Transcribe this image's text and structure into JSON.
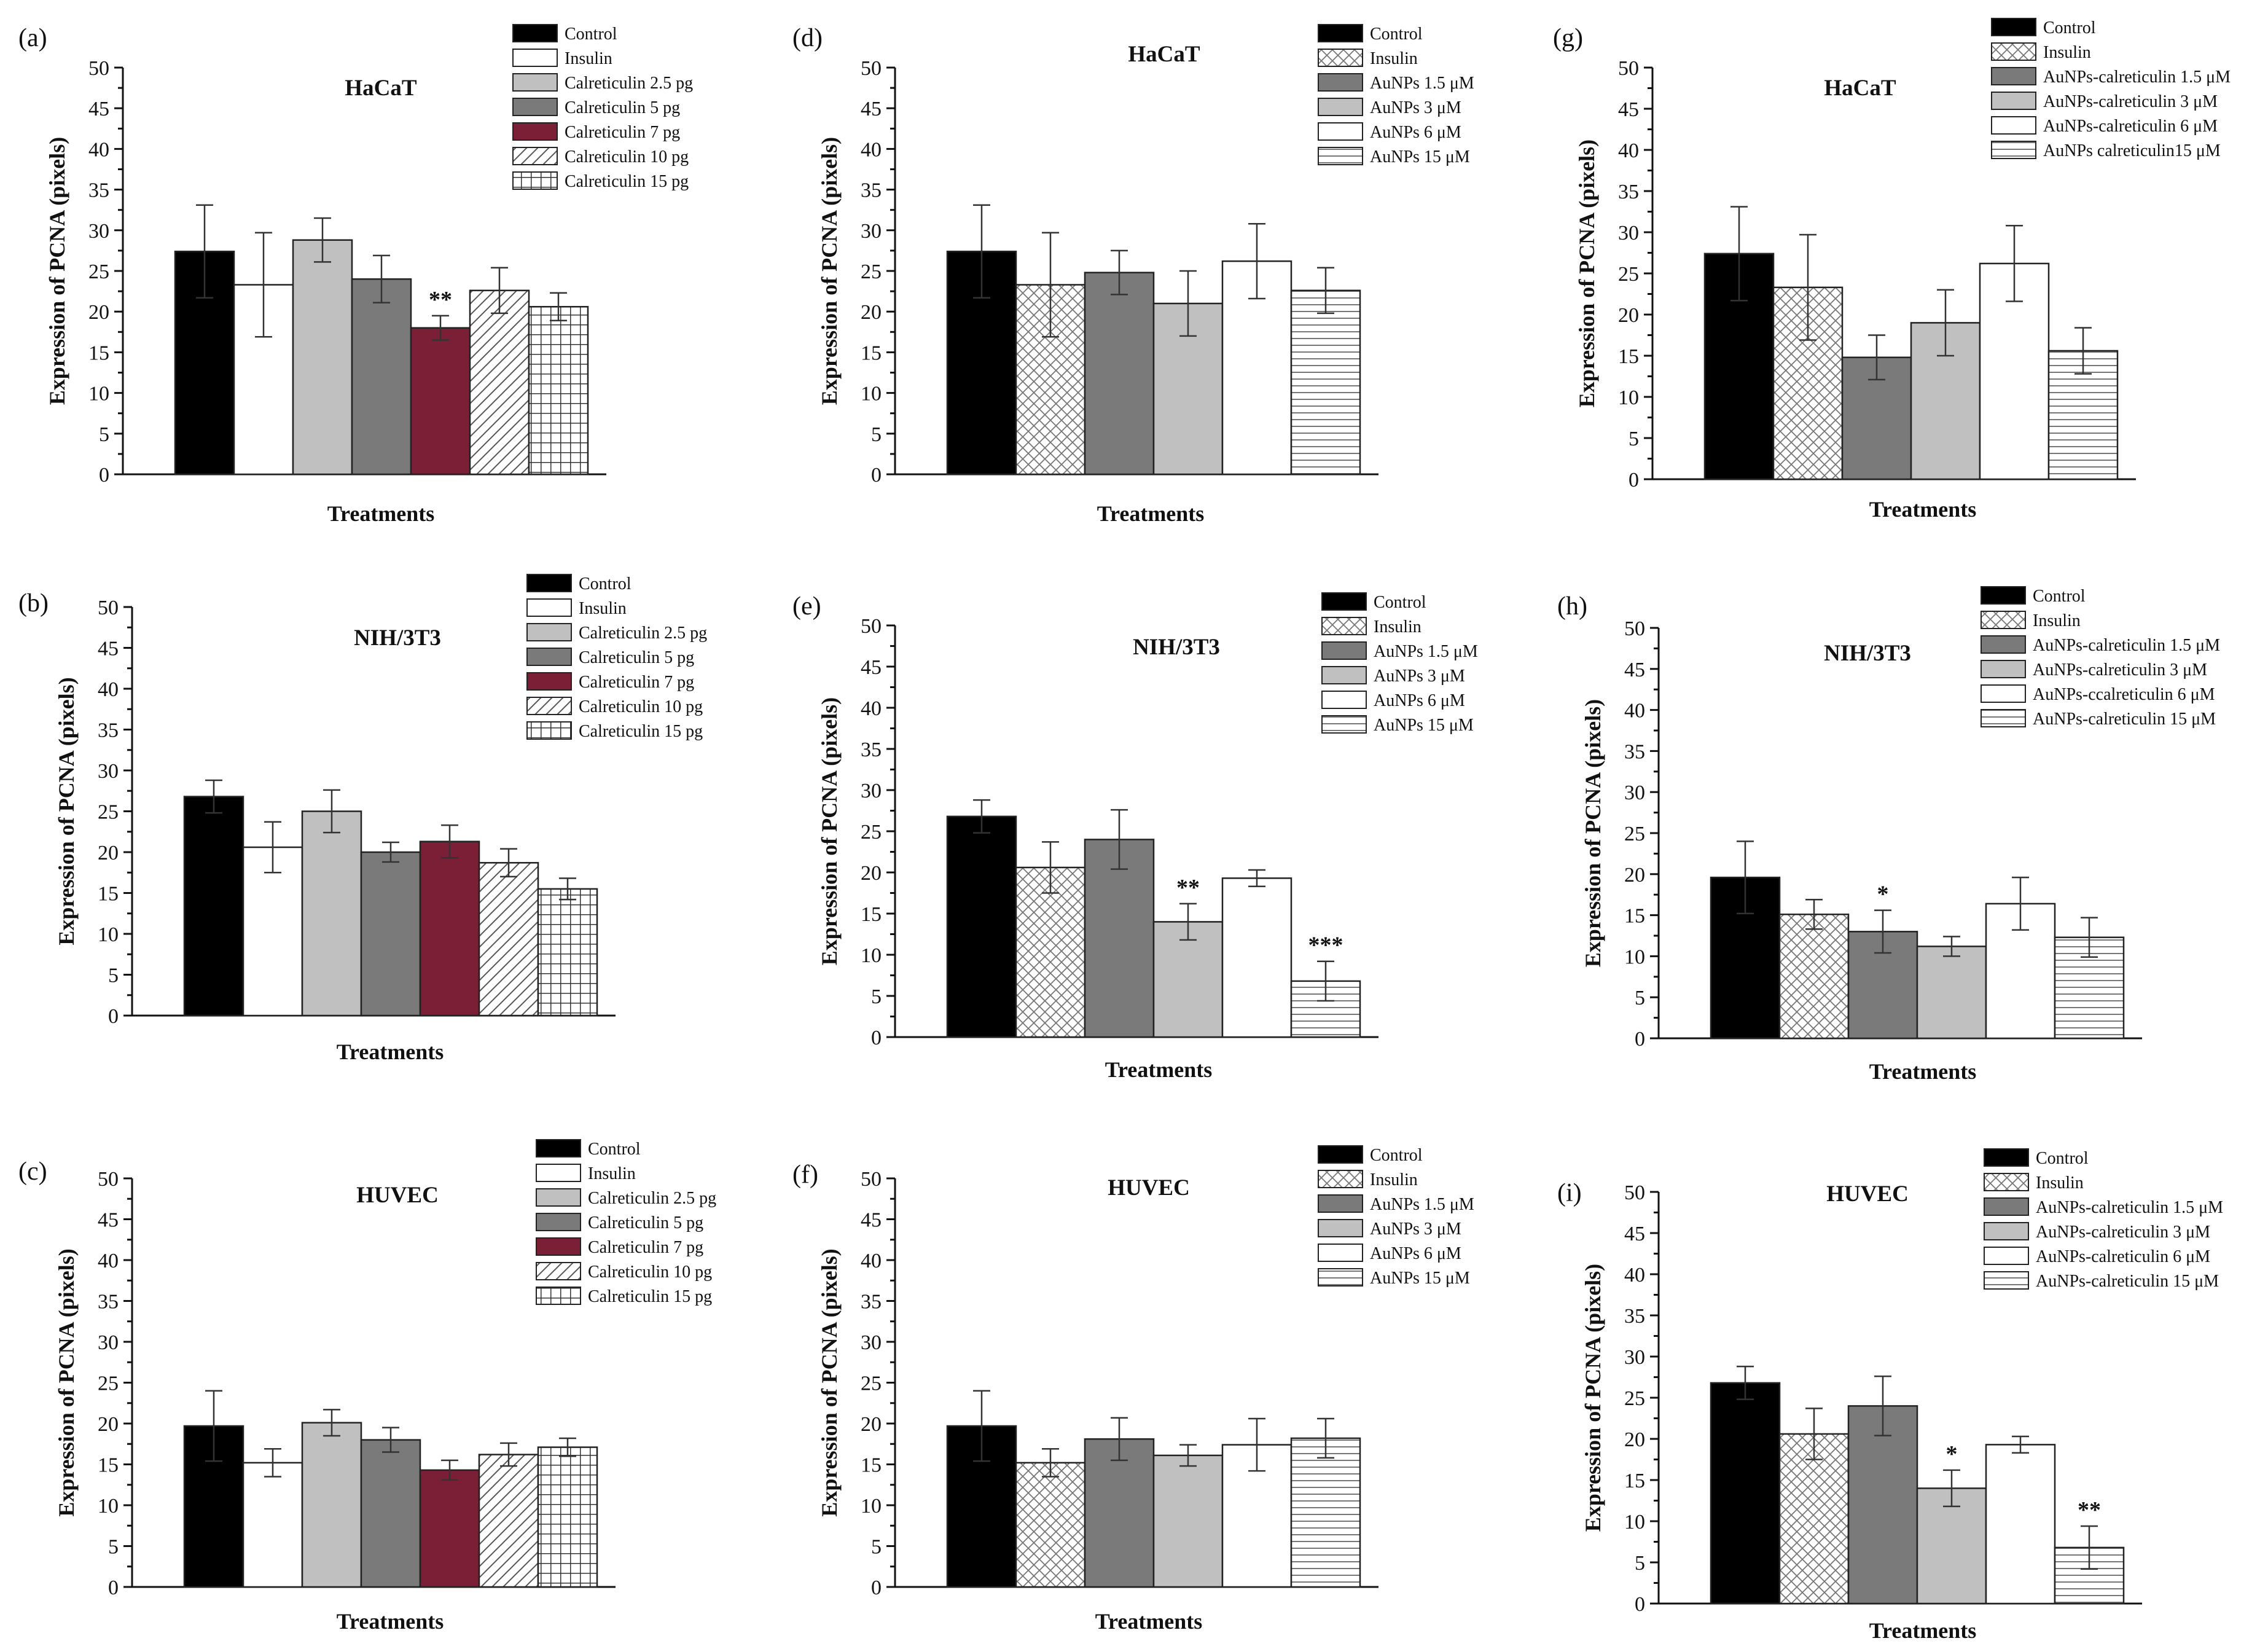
{
  "figure": {
    "ylabel": "Expression of PCNA (pixels)",
    "xlabel": "Treatments"
  },
  "patterns": {
    "calreticulin_set": [
      "solid-black",
      "solid-white",
      "solid-lightgray",
      "solid-gray",
      "solid-maroon",
      "diagonal",
      "grid"
    ],
    "aunps_set": [
      "solid-black",
      "crosshatch",
      "solid-gray",
      "solid-lightgray",
      "solid-white",
      "horizontal"
    ]
  },
  "colors": {
    "black": "#000000",
    "white": "#ffffff",
    "lightgray": "#c0c0c0",
    "gray": "#7a7a7a",
    "maroon": "#7b1f36"
  },
  "chart_data": [
    {
      "panel": "(a)",
      "type": "bar",
      "title": "HaCaT",
      "pattern_set": "calreticulin_set",
      "xlabel": "Treatments",
      "ylabel": "Expression of PCNA (pixels)",
      "ylim": [
        0,
        50
      ],
      "yticks": [
        0,
        5,
        10,
        15,
        20,
        25,
        30,
        35,
        40,
        45,
        50
      ],
      "legend": [
        "Control",
        "Insulin",
        "Calreticulin 2.5 pg",
        "Calreticulin 5 pg",
        "Calreticulin 7 pg",
        "Calreticulin 10 pg",
        "Calreticulin 15 pg"
      ],
      "values": [
        27.4,
        23.3,
        28.8,
        24.0,
        18.0,
        22.6,
        20.6
      ],
      "errors": [
        5.7,
        6.4,
        2.7,
        2.9,
        1.5,
        2.8,
        1.7
      ],
      "significance": [
        "",
        "",
        "",
        "",
        "**",
        "",
        ""
      ]
    },
    {
      "panel": "(b)",
      "type": "bar",
      "title": "NIH/3T3",
      "pattern_set": "calreticulin_set",
      "xlabel": "Treatments",
      "ylabel": "Expression of PCNA (pixels)",
      "ylim": [
        0,
        50
      ],
      "yticks": [
        0,
        5,
        10,
        15,
        20,
        25,
        30,
        35,
        40,
        45,
        50
      ],
      "legend": [
        "Control",
        "Insulin",
        "Calreticulin 2.5 pg",
        "Calreticulin 5 pg",
        "Calreticulin 7 pg",
        "Calreticulin 10 pg",
        "Calreticulin 15 pg"
      ],
      "values": [
        26.8,
        20.6,
        25.0,
        20.0,
        21.3,
        18.7,
        15.5
      ],
      "errors": [
        2.0,
        3.1,
        2.6,
        1.2,
        2.0,
        1.7,
        1.3
      ],
      "significance": [
        "",
        "",
        "",
        "",
        "",
        "",
        ""
      ]
    },
    {
      "panel": "(c)",
      "type": "bar",
      "title": "HUVEC",
      "pattern_set": "calreticulin_set",
      "xlabel": "Treatments",
      "ylabel": "Expression of PCNA (pixels)",
      "ylim": [
        0,
        50
      ],
      "yticks": [
        0,
        5,
        10,
        15,
        20,
        25,
        30,
        35,
        40,
        45,
        50
      ],
      "legend": [
        "Control",
        "Insulin",
        "Calreticulin 2.5 pg",
        "Calreticulin 5 pg",
        "Calreticulin 7 pg",
        "Calreticulin 10 pg",
        "Calreticulin 15 pg"
      ],
      "values": [
        19.7,
        15.2,
        20.1,
        18.0,
        14.3,
        16.2,
        17.1
      ],
      "errors": [
        4.3,
        1.7,
        1.6,
        1.5,
        1.2,
        1.4,
        1.1
      ],
      "significance": [
        "",
        "",
        "",
        "",
        "",
        "",
        ""
      ]
    },
    {
      "panel": "(d)",
      "type": "bar",
      "title": "HaCaT",
      "pattern_set": "aunps_set",
      "xlabel": "Treatments",
      "ylabel": "Expression of PCNA (pixels)",
      "ylim": [
        0,
        50
      ],
      "yticks": [
        0,
        5,
        10,
        15,
        20,
        25,
        30,
        35,
        40,
        45,
        50
      ],
      "legend": [
        "Control",
        "Insulin",
        "AuNPs 1.5 μM",
        "AuNPs 3 μM",
        "AuNPs 6 μM",
        "AuNPs 15 μM"
      ],
      "values": [
        27.4,
        23.3,
        24.8,
        21.0,
        26.2,
        22.6
      ],
      "errors": [
        5.7,
        6.4,
        2.7,
        4.0,
        4.6,
        2.8
      ],
      "significance": [
        "",
        "",
        "",
        "",
        "",
        ""
      ]
    },
    {
      "panel": "(e)",
      "type": "bar",
      "title": "NIH/3T3",
      "pattern_set": "aunps_set",
      "xlabel": "Treatments",
      "ylabel": "Expression of PCNA (pixels)",
      "ylim": [
        0,
        50
      ],
      "yticks": [
        0,
        5,
        10,
        15,
        20,
        25,
        30,
        35,
        40,
        45,
        50
      ],
      "legend": [
        "Control",
        "Insulin",
        "AuNPs 1.5 μM",
        "AuNPs 3 μM",
        "AuNPs 6 μM",
        "AuNPs 15 μM"
      ],
      "values": [
        26.8,
        20.6,
        24.0,
        14.0,
        19.3,
        6.8
      ],
      "errors": [
        2.0,
        3.1,
        3.6,
        2.2,
        1.0,
        2.4
      ],
      "significance": [
        "",
        "",
        "",
        "**",
        "",
        "***"
      ]
    },
    {
      "panel": "(f)",
      "type": "bar",
      "title": "HUVEC",
      "pattern_set": "aunps_set",
      "xlabel": "Treatments",
      "ylabel": "Expression of PCNA (pixels)",
      "ylim": [
        0,
        50
      ],
      "yticks": [
        0,
        5,
        10,
        15,
        20,
        25,
        30,
        35,
        40,
        45,
        50
      ],
      "legend": [
        "Control",
        "Insulin",
        "AuNPs 1.5 μM",
        "AuNPs 3 μM",
        "AuNPs 6 μM",
        "AuNPs 15 μM"
      ],
      "values": [
        19.7,
        15.2,
        18.1,
        16.1,
        17.4,
        18.2
      ],
      "errors": [
        4.3,
        1.7,
        2.6,
        1.3,
        3.2,
        2.4
      ],
      "significance": [
        "",
        "",
        "",
        "",
        "",
        ""
      ]
    },
    {
      "panel": "(g)",
      "type": "bar",
      "title": "HaCaT",
      "pattern_set": "aunps_set",
      "xlabel": "Treatments",
      "ylabel": "Expression of PCNA (pixels)",
      "ylim": [
        0,
        50
      ],
      "yticks": [
        0,
        5,
        10,
        15,
        20,
        25,
        30,
        35,
        40,
        45,
        50
      ],
      "legend": [
        "Control",
        "Insulin",
        "AuNPs-calreticulin 1.5 μM",
        "AuNPs-calreticulin 3 μM",
        "AuNPs-calreticulin 6 μM",
        "AuNPs calreticulin15 μM"
      ],
      "values": [
        27.4,
        23.3,
        14.8,
        19.0,
        26.2,
        15.6
      ],
      "errors": [
        5.7,
        6.4,
        2.7,
        4.0,
        4.6,
        2.8
      ],
      "significance": [
        "",
        "",
        "",
        "",
        "",
        ""
      ]
    },
    {
      "panel": "(h)",
      "type": "bar",
      "title": "NIH/3T3",
      "pattern_set": "aunps_set",
      "xlabel": "Treatments",
      "ylabel": "Expression of PCNA (pixels)",
      "ylim": [
        0,
        50
      ],
      "yticks": [
        0,
        5,
        10,
        15,
        20,
        25,
        30,
        35,
        40,
        45,
        50
      ],
      "legend": [
        "Control",
        "Insulin",
        "AuNPs-calreticulin 1.5 μM",
        "AuNPs-calreticulin 3  μM",
        "AuNPs-ccalreticulin 6 μM",
        "AuNPs-calreticulin 15 μM"
      ],
      "values": [
        19.6,
        15.1,
        13.0,
        11.2,
        16.4,
        12.3
      ],
      "errors": [
        4.4,
        1.8,
        2.6,
        1.2,
        3.2,
        2.4
      ],
      "significance": [
        "",
        "",
        "*",
        "",
        "",
        ""
      ]
    },
    {
      "panel": "(i)",
      "type": "bar",
      "title": "HUVEC",
      "pattern_set": "aunps_set",
      "xlabel": "Treatments",
      "ylabel": "Expression of PCNA (pixels)",
      "ylim": [
        0,
        50
      ],
      "yticks": [
        0,
        5,
        10,
        15,
        20,
        25,
        30,
        35,
        40,
        45,
        50
      ],
      "legend": [
        "Control",
        "Insulin",
        "AuNPs-calreticulin 1.5 μM",
        "AuNPs-calreticulin 3 μM",
        "AuNPs-calreticulin 6 μM",
        "AuNPs-calreticulin 15 μM"
      ],
      "values": [
        26.8,
        20.6,
        24.0,
        14.0,
        19.3,
        6.8
      ],
      "errors": [
        2.0,
        3.1,
        3.6,
        2.2,
        1.0,
        2.6
      ],
      "significance": [
        "",
        "",
        "",
        "*",
        "",
        "**"
      ]
    }
  ]
}
